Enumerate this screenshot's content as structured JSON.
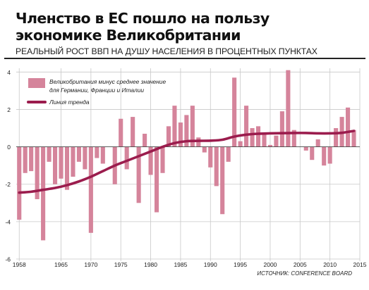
{
  "header": {
    "title_line1": "Членство в ЕС пошло на пользу",
    "title_line2": "экономике Великобритании",
    "subtitle": "РЕАЛЬНЫЙ РОСТ ВВП НА ДУШУ НАСЕЛЕНИЯ В ПРОЦЕНТНЫХ ПУНКТАХ",
    "source": "ИСТОЧНИК: CONFERENCE BOARD"
  },
  "colors": {
    "bars": "#d5849b",
    "trend": "#9b1c4d",
    "grid": "#c8c8c8",
    "text": "#222222"
  },
  "chart_data": {
    "type": "bar",
    "grid": true,
    "legend_position": "top-left",
    "xlim": [
      1957.5,
      2015
    ],
    "ylim": [
      -6,
      4.2
    ],
    "x_ticks": [
      1958,
      1965,
      1970,
      1975,
      1980,
      1985,
      1990,
      1995,
      2000,
      2005,
      2010,
      2015
    ],
    "y_ticks": [
      -6,
      -4,
      -2,
      0,
      2,
      4
    ],
    "series": [
      {
        "name": "Великобритания минус среднее значение для Германии, Франции и Италии",
        "legend_line1": "Великобритания минус среднее значение",
        "legend_line2": "для Германии, Франции и Италии",
        "type": "bar",
        "x": [
          1958,
          1959,
          1960,
          1961,
          1962,
          1963,
          1964,
          1965,
          1966,
          1967,
          1968,
          1969,
          1970,
          1971,
          1972,
          1973,
          1974,
          1975,
          1976,
          1977,
          1978,
          1979,
          1980,
          1981,
          1982,
          1983,
          1984,
          1985,
          1986,
          1987,
          1988,
          1989,
          1990,
          1991,
          1992,
          1993,
          1994,
          1995,
          1996,
          1997,
          1998,
          1999,
          2000,
          2001,
          2002,
          2003,
          2004,
          2005,
          2006,
          2007,
          2008,
          2009,
          2010,
          2011,
          2012,
          2013,
          2014
        ],
        "values": [
          -3.9,
          -1.4,
          -1.3,
          -2.8,
          -5.0,
          -0.8,
          -2.0,
          -1.7,
          -2.3,
          -1.6,
          -0.8,
          -1.2,
          -4.6,
          -0.6,
          -0.9,
          0,
          -2.0,
          1.5,
          -1.2,
          1.6,
          -3.0,
          0.7,
          -1.5,
          -3.5,
          -1.4,
          1.1,
          2.2,
          1.3,
          1.7,
          2.2,
          0.5,
          -0.3,
          -1.1,
          -2.1,
          -3.6,
          -0.8,
          3.7,
          0.3,
          2.2,
          1.0,
          1.1,
          0.7,
          0.1,
          0.6,
          1.9,
          4.1,
          0.9,
          0.0,
          -0.2,
          -0.7,
          0.4,
          -1.0,
          -0.9,
          1.0,
          1.6,
          2.1,
          0.9
        ]
      },
      {
        "name": "Линия тренда",
        "type": "line",
        "x": [
          1958,
          1960,
          1962,
          1964,
          1966,
          1968,
          1970,
          1972,
          1974,
          1976,
          1978,
          1980,
          1982,
          1984,
          1986,
          1988,
          1990,
          1992,
          1994,
          1996,
          1998,
          2000,
          2002,
          2004,
          2006,
          2008,
          2010,
          2012,
          2014
        ],
        "values": [
          -2.45,
          -2.4,
          -2.3,
          -2.2,
          -2.05,
          -1.85,
          -1.6,
          -1.3,
          -1.0,
          -0.75,
          -0.5,
          -0.25,
          0.0,
          0.2,
          0.3,
          0.32,
          0.33,
          0.38,
          0.55,
          0.65,
          0.7,
          0.72,
          0.73,
          0.74,
          0.74,
          0.72,
          0.72,
          0.75,
          0.85
        ]
      }
    ]
  }
}
